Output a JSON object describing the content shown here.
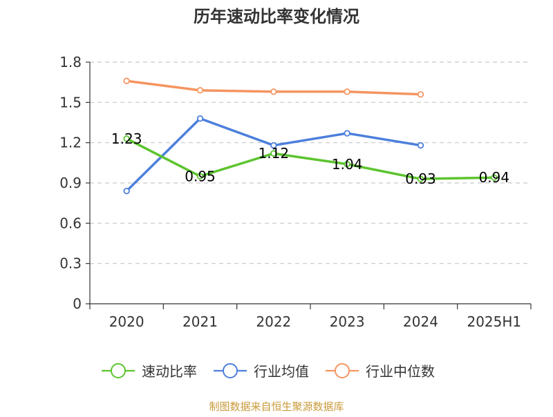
{
  "chart_data": {
    "type": "line",
    "title": "历年速动比率变化情况",
    "categories": [
      "2020",
      "2021",
      "2022",
      "2023",
      "2024",
      "2025H1"
    ],
    "ylim": [
      0,
      1.8
    ],
    "yticks": [
      "0",
      "0.3",
      "0.6",
      "0.9",
      "1.2",
      "1.5",
      "1.8"
    ],
    "grid": true,
    "legend_position": "bottom",
    "series": [
      {
        "name": "速动比率",
        "color": "#5cc42f",
        "values": [
          1.23,
          0.95,
          1.12,
          1.04,
          0.93,
          0.94
        ],
        "labels": [
          "1.23",
          "0.95",
          "1.12",
          "1.04",
          "0.93",
          "0.94"
        ]
      },
      {
        "name": "行业均值",
        "color": "#4c7fdc",
        "values": [
          0.84,
          1.38,
          1.18,
          1.27,
          1.18,
          null
        ]
      },
      {
        "name": "行业中位数",
        "color": "#f59460",
        "values": [
          1.66,
          1.59,
          1.58,
          1.58,
          1.56,
          null
        ]
      }
    ]
  },
  "footer": {
    "source": "制图数据来自恒生聚源数据库"
  }
}
